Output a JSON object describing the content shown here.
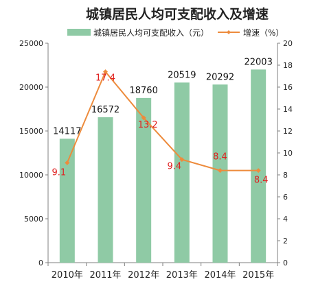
{
  "chart_data": {
    "type": "bar+line",
    "title": "城镇居民人均可支配收入及增速",
    "categories": [
      "2010年",
      "2011年",
      "2012年",
      "2013年",
      "2014年",
      "2015年"
    ],
    "series": [
      {
        "name": "城镇居民人均可支配收入（元）",
        "type": "bar",
        "axis": "left",
        "values": [
          14117,
          16572,
          18760,
          20519,
          20292,
          22003
        ],
        "labels": [
          "14117",
          "16572",
          "18760",
          "20519",
          "20292",
          "22003"
        ],
        "color": "#8fcaa5"
      },
      {
        "name": "增速（%）",
        "type": "line",
        "axis": "right",
        "values": [
          9.1,
          17.4,
          13.2,
          9.4,
          8.4,
          8.4
        ],
        "labels": [
          "9.1",
          "17.4",
          "13.2",
          "9.4",
          "8.4",
          "8.4"
        ],
        "color": "#ed8b3c",
        "label_color": "#e02020"
      }
    ],
    "y_left": {
      "min": 0,
      "max": 25000,
      "ticks": [
        "0",
        "5000",
        "10000",
        "15000",
        "20000",
        "25000"
      ]
    },
    "y_right": {
      "min": 0,
      "max": 20,
      "ticks": [
        "0",
        "2",
        "4",
        "6",
        "8",
        "10",
        "12",
        "14",
        "16",
        "18",
        "20"
      ]
    },
    "legend": "top",
    "grid": false
  }
}
